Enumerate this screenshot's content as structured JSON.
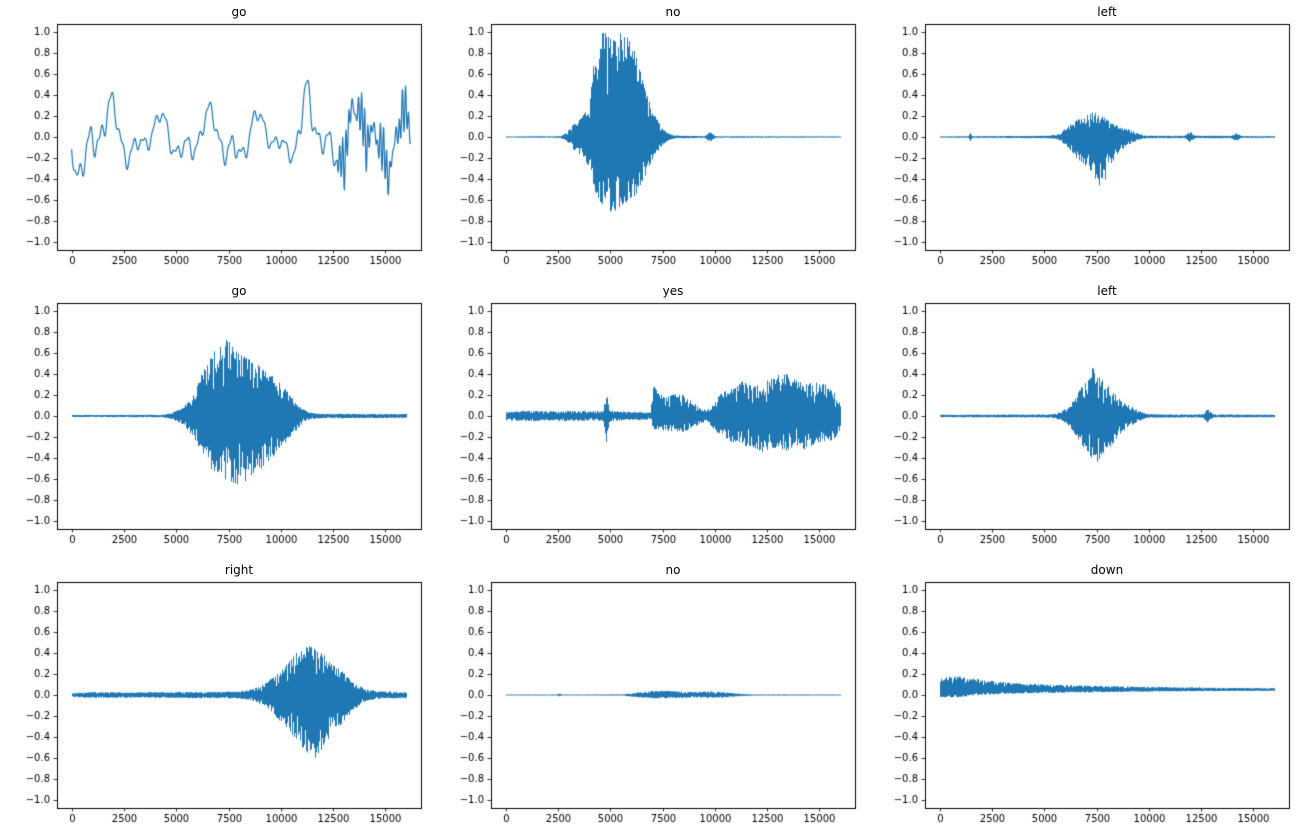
{
  "chart_data": {
    "type": "line",
    "chart_kind": "audio-waveform-grid",
    "line_color": "#1f77b4",
    "sample_count": 16000,
    "axes": {
      "xlim": [
        -700,
        16700
      ],
      "ylim": [
        -1.08,
        1.08
      ],
      "xticks": [
        0,
        2500,
        5000,
        7500,
        10000,
        12500,
        15000
      ],
      "yticks": [
        -1.0,
        -0.8,
        -0.6,
        -0.4,
        -0.2,
        0.0,
        0.2,
        0.4,
        0.6,
        0.8,
        1.0
      ]
    },
    "plots": [
      {
        "title": "go",
        "style": "smooth",
        "seed": 11,
        "baseline": 0,
        "tail_start": 12700,
        "envelope": [
          [
            0,
            0.3
          ],
          [
            200,
            0.45
          ],
          [
            500,
            0.35
          ],
          [
            1200,
            0.4
          ],
          [
            2000,
            0.3
          ],
          [
            2500,
            0.25
          ],
          [
            4000,
            0.18
          ],
          [
            5500,
            0.25
          ],
          [
            6500,
            0.22
          ],
          [
            7500,
            0.3
          ],
          [
            8500,
            0.22
          ],
          [
            9500,
            0.18
          ],
          [
            10500,
            0.2
          ],
          [
            11200,
            0.42
          ],
          [
            11800,
            0.3
          ],
          [
            12400,
            0.3
          ],
          [
            13000,
            0.28
          ],
          [
            14000,
            0.3
          ],
          [
            15000,
            0.28
          ],
          [
            16200,
            0.25
          ]
        ]
      },
      {
        "title": "no",
        "style": "dense",
        "seed": 22,
        "baseline": 0,
        "envelope": [
          [
            0,
            0.006
          ],
          [
            2600,
            0.008
          ],
          [
            2900,
            0.04
          ],
          [
            3200,
            0.12
          ],
          [
            3600,
            0.18
          ],
          [
            4000,
            0.35,
            0.3
          ],
          [
            4300,
            0.9,
            0.55
          ],
          [
            4600,
            1.0,
            0.65
          ],
          [
            5000,
            0.98,
            0.75
          ],
          [
            5400,
            1.0,
            0.7
          ],
          [
            5800,
            0.95,
            0.65
          ],
          [
            6200,
            0.8,
            0.55
          ],
          [
            6500,
            0.6,
            0.45
          ],
          [
            6800,
            0.4,
            0.3
          ],
          [
            7100,
            0.22,
            0.18
          ],
          [
            7400,
            0.1,
            0.1
          ],
          [
            7700,
            0.04,
            0.04
          ],
          [
            8000,
            0.015,
            0.015
          ],
          [
            9500,
            0.008
          ],
          [
            9750,
            0.05
          ],
          [
            10000,
            0.008
          ],
          [
            16000,
            0.006
          ]
        ]
      },
      {
        "title": "left",
        "style": "dense",
        "seed": 33,
        "baseline": 0,
        "envelope": [
          [
            0,
            0.006
          ],
          [
            1350,
            0.008
          ],
          [
            1450,
            0.04
          ],
          [
            1550,
            0.008
          ],
          [
            5200,
            0.012
          ],
          [
            5700,
            0.03
          ],
          [
            6100,
            0.1
          ],
          [
            6500,
            0.16,
            0.2
          ],
          [
            6900,
            0.2,
            0.28
          ],
          [
            7300,
            0.24,
            0.38
          ],
          [
            7600,
            0.22,
            0.5
          ],
          [
            7900,
            0.18,
            0.42
          ],
          [
            8200,
            0.14,
            0.25
          ],
          [
            8600,
            0.1,
            0.14
          ],
          [
            9100,
            0.07
          ],
          [
            9500,
            0.03
          ],
          [
            9900,
            0.012
          ],
          [
            11700,
            0.012
          ],
          [
            11950,
            0.055
          ],
          [
            12200,
            0.012
          ],
          [
            13900,
            0.012
          ],
          [
            14150,
            0.04
          ],
          [
            14400,
            0.01
          ],
          [
            16000,
            0.008
          ]
        ]
      },
      {
        "title": "go",
        "style": "dense",
        "seed": 44,
        "baseline": 0,
        "envelope": [
          [
            0,
            0.01
          ],
          [
            4300,
            0.012
          ],
          [
            4800,
            0.03
          ],
          [
            5300,
            0.08
          ],
          [
            5800,
            0.2
          ],
          [
            6200,
            0.4,
            0.35
          ],
          [
            6600,
            0.55,
            0.5
          ],
          [
            7000,
            0.68,
            0.55
          ],
          [
            7300,
            0.77,
            0.6
          ],
          [
            7600,
            0.7,
            0.65
          ],
          [
            8000,
            0.62,
            0.68
          ],
          [
            8400,
            0.55,
            0.6
          ],
          [
            8800,
            0.5,
            0.55
          ],
          [
            9200,
            0.45,
            0.48
          ],
          [
            9600,
            0.38,
            0.4
          ],
          [
            10000,
            0.3,
            0.3
          ],
          [
            10400,
            0.22
          ],
          [
            10800,
            0.12
          ],
          [
            11100,
            0.06
          ],
          [
            11400,
            0.03
          ],
          [
            12000,
            0.02
          ],
          [
            13000,
            0.022
          ],
          [
            14000,
            0.02
          ],
          [
            16000,
            0.02
          ]
        ]
      },
      {
        "title": "yes",
        "style": "dense",
        "seed": 55,
        "baseline": 0,
        "envelope": [
          [
            0,
            0.045
          ],
          [
            1000,
            0.05
          ],
          [
            2000,
            0.045
          ],
          [
            3000,
            0.05
          ],
          [
            4000,
            0.045
          ],
          [
            4650,
            0.05
          ],
          [
            4800,
            0.24,
            0.26
          ],
          [
            4950,
            0.05
          ],
          [
            6000,
            0.04
          ],
          [
            6900,
            0.035
          ],
          [
            7050,
            0.3,
            0.15
          ],
          [
            7300,
            0.22,
            0.14
          ],
          [
            7700,
            0.18,
            0.14
          ],
          [
            8100,
            0.22,
            0.16
          ],
          [
            8500,
            0.2,
            0.15
          ],
          [
            8900,
            0.14,
            0.12
          ],
          [
            9300,
            0.08
          ],
          [
            9600,
            0.05
          ],
          [
            9900,
            0.12
          ],
          [
            10300,
            0.22,
            0.2
          ],
          [
            10800,
            0.28,
            0.25
          ],
          [
            11300,
            0.33,
            0.28
          ],
          [
            11800,
            0.28,
            0.3
          ],
          [
            12300,
            0.32,
            0.35
          ],
          [
            12800,
            0.38,
            0.3
          ],
          [
            13300,
            0.42,
            0.34
          ],
          [
            13800,
            0.35,
            0.3
          ],
          [
            14300,
            0.3,
            0.32
          ],
          [
            14800,
            0.33,
            0.28
          ],
          [
            15300,
            0.3,
            0.25
          ],
          [
            15700,
            0.22
          ],
          [
            16000,
            0.12
          ]
        ]
      },
      {
        "title": "left",
        "style": "dense",
        "seed": 66,
        "baseline": 0,
        "envelope": [
          [
            0,
            0.012
          ],
          [
            5300,
            0.015
          ],
          [
            5800,
            0.04
          ],
          [
            6200,
            0.1
          ],
          [
            6600,
            0.22
          ],
          [
            7000,
            0.38,
            0.35
          ],
          [
            7300,
            0.46,
            0.42
          ],
          [
            7600,
            0.4,
            0.44
          ],
          [
            7900,
            0.32,
            0.36
          ],
          [
            8300,
            0.22,
            0.25
          ],
          [
            8700,
            0.15
          ],
          [
            9100,
            0.1
          ],
          [
            9500,
            0.05
          ],
          [
            9900,
            0.02
          ],
          [
            10500,
            0.015
          ],
          [
            12550,
            0.015
          ],
          [
            12800,
            0.07
          ],
          [
            13050,
            0.015
          ],
          [
            16000,
            0.012
          ]
        ]
      },
      {
        "title": "right",
        "style": "dense",
        "seed": 77,
        "baseline": 0,
        "envelope": [
          [
            0,
            0.02
          ],
          [
            1000,
            0.03
          ],
          [
            3000,
            0.025
          ],
          [
            5000,
            0.03
          ],
          [
            7000,
            0.03
          ],
          [
            8200,
            0.04
          ],
          [
            8800,
            0.07
          ],
          [
            9300,
            0.12
          ],
          [
            9800,
            0.2,
            0.22
          ],
          [
            10300,
            0.3,
            0.32
          ],
          [
            10800,
            0.42,
            0.45
          ],
          [
            11200,
            0.48,
            0.55
          ],
          [
            11600,
            0.45,
            0.62
          ],
          [
            12000,
            0.4,
            0.5
          ],
          [
            12400,
            0.32,
            0.4
          ],
          [
            12800,
            0.25,
            0.3
          ],
          [
            13200,
            0.17,
            0.2
          ],
          [
            13600,
            0.1,
            0.12
          ],
          [
            14000,
            0.06
          ],
          [
            14500,
            0.04
          ],
          [
            15200,
            0.035
          ],
          [
            16000,
            0.03
          ]
        ]
      },
      {
        "title": "no",
        "style": "dense",
        "seed": 88,
        "baseline": 0,
        "envelope": [
          [
            0,
            0.005
          ],
          [
            2400,
            0.005
          ],
          [
            2550,
            0.014
          ],
          [
            2700,
            0.005
          ],
          [
            5600,
            0.006
          ],
          [
            6100,
            0.02
          ],
          [
            6700,
            0.035,
            0.03
          ],
          [
            7300,
            0.045,
            0.035
          ],
          [
            7900,
            0.04,
            0.03
          ],
          [
            8500,
            0.032,
            0.027
          ],
          [
            9100,
            0.028,
            0.024
          ],
          [
            9700,
            0.035,
            0.028
          ],
          [
            10300,
            0.03,
            0.025
          ],
          [
            10800,
            0.02
          ],
          [
            11300,
            0.01
          ],
          [
            11800,
            0.006
          ],
          [
            16000,
            0.005
          ]
        ]
      },
      {
        "title": "down",
        "style": "dense",
        "seed": 99,
        "baseline": 0.05,
        "envelope": [
          [
            0,
            0.1,
            0.07
          ],
          [
            400,
            0.13,
            0.08
          ],
          [
            900,
            0.13,
            0.07
          ],
          [
            1500,
            0.11,
            0.06
          ],
          [
            2200,
            0.09,
            0.05
          ],
          [
            3000,
            0.075,
            0.04
          ],
          [
            4000,
            0.06,
            0.035
          ],
          [
            5500,
            0.05,
            0.03
          ],
          [
            7000,
            0.04,
            0.025
          ],
          [
            9000,
            0.032,
            0.02
          ],
          [
            11000,
            0.026,
            0.016
          ],
          [
            13000,
            0.02,
            0.013
          ],
          [
            16000,
            0.016,
            0.01
          ]
        ]
      }
    ]
  }
}
